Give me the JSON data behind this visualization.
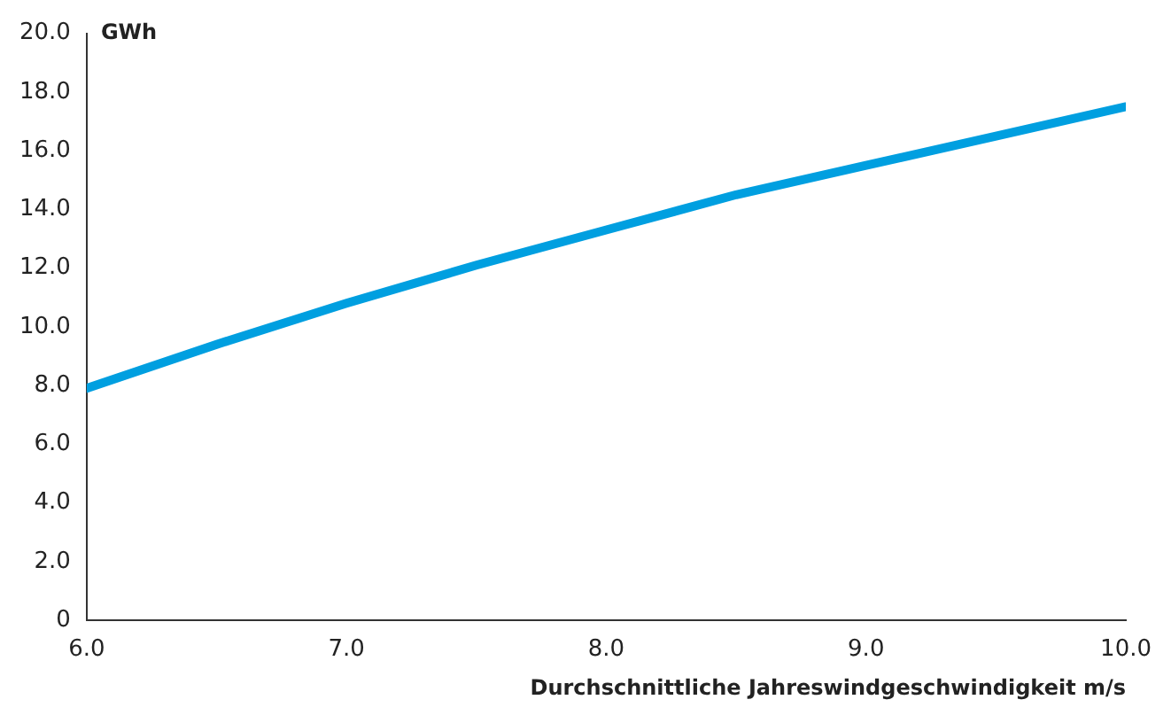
{
  "chart_data": {
    "type": "line",
    "xlabel": "Durchschnittliche Jahreswindgeschwindigkeit m/s",
    "ylabel": "GWh",
    "x": [
      6.0,
      6.5,
      7.0,
      7.5,
      8.0,
      8.5,
      9.0,
      9.5,
      10.0
    ],
    "series": [
      {
        "color": "#009fe0",
        "values": [
          7.9,
          9.4,
          10.8,
          12.1,
          13.3,
          14.5,
          15.5,
          16.5,
          17.5
        ]
      }
    ],
    "xlim": [
      6.0,
      10.0
    ],
    "xticks": [
      {
        "value": 6,
        "label": "6.0"
      },
      {
        "value": 7,
        "label": "7.0"
      },
      {
        "value": 8,
        "label": "8.0"
      },
      {
        "value": 9,
        "label": "9.0"
      },
      {
        "value": 10,
        "label": "10.0"
      }
    ],
    "ylim": [
      0,
      20
    ],
    "yticks": [
      0,
      {
        "value": 2,
        "label": "2.0"
      },
      {
        "value": 4,
        "label": "4.0"
      },
      {
        "value": 6,
        "label": "6.0"
      },
      {
        "value": 8,
        "label": "8.0"
      },
      {
        "value": 10,
        "label": "10.0"
      },
      {
        "value": 12,
        "label": "12.0"
      },
      {
        "value": 14,
        "label": "14.0"
      },
      {
        "value": 16,
        "label": "16.0"
      },
      {
        "value": 18,
        "label": "18.0"
      },
      {
        "value": 20,
        "label": "20.0"
      }
    ],
    "grid": false,
    "legend": false,
    "marker": "none",
    "line_style": "solid"
  }
}
